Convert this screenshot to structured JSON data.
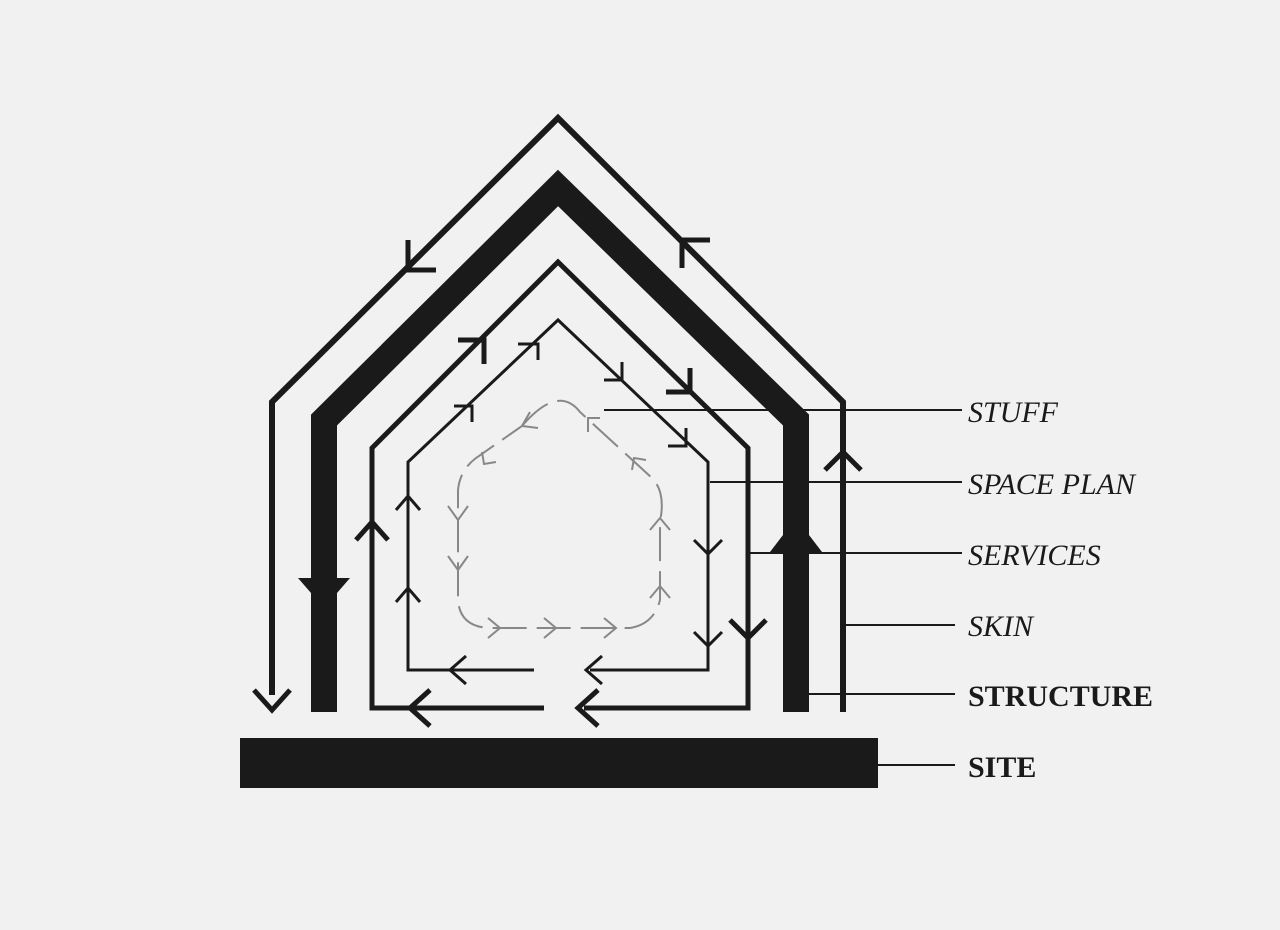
{
  "diagram": {
    "layers": [
      {
        "id": "stuff",
        "label": "STUFF"
      },
      {
        "id": "space_plan",
        "label": "SPACE PLAN"
      },
      {
        "id": "services",
        "label": "SERVICES"
      },
      {
        "id": "skin",
        "label": "SKIN"
      },
      {
        "id": "structure",
        "label": "STRUCTURE"
      },
      {
        "id": "site",
        "label": "SITE"
      }
    ],
    "colors": {
      "background": "#f1f1f1",
      "ink": "#1a1a1a",
      "stuff_ink": "#888888"
    }
  }
}
